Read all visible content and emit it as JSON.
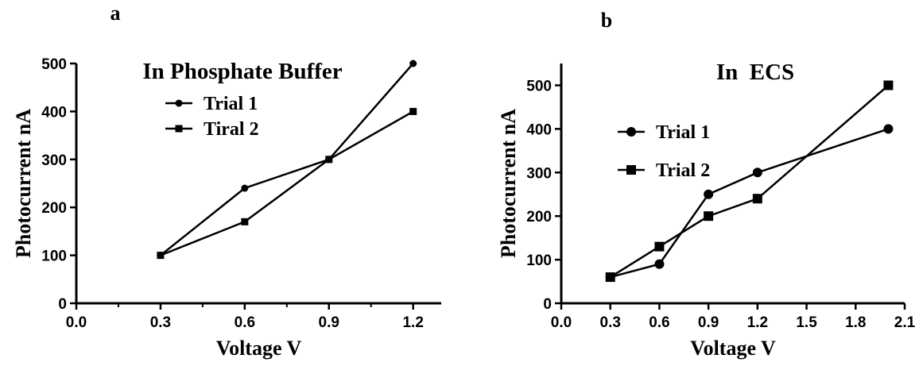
{
  "chart_data": [
    {
      "type": "line",
      "panel_label": "a",
      "title": "In Phosphate Buffer",
      "xlabel": "Voltage V",
      "ylabel": "Photocurrent nA",
      "xlim": [
        0.0,
        1.3
      ],
      "ylim": [
        0,
        500
      ],
      "xticks": [
        "0.0",
        "0.3",
        "0.6",
        "0.9",
        "1.2"
      ],
      "yticks": [
        "0",
        "100",
        "200",
        "300",
        "400",
        "500"
      ],
      "legend_position": "top",
      "series": [
        {
          "name": "Trial 1",
          "marker": "circle",
          "x": [
            0.3,
            0.6,
            0.9,
            1.2
          ],
          "y": [
            100,
            240,
            300,
            500
          ]
        },
        {
          "name": "Tiral 2",
          "marker": "square",
          "x": [
            0.3,
            0.6,
            0.9,
            1.2
          ],
          "y": [
            100,
            170,
            300,
            400
          ]
        }
      ]
    },
    {
      "type": "line",
      "panel_label": "b",
      "title": "In  ECS",
      "xlabel": "Voltage V",
      "ylabel": "Photocurrent nA",
      "xlim": [
        0.0,
        2.1
      ],
      "ylim": [
        0,
        550
      ],
      "xticks": [
        "0.0",
        "0.3",
        "0.6",
        "0.9",
        "1.2",
        "1.5",
        "1.8",
        "2.1"
      ],
      "yticks": [
        "0",
        "100",
        "200",
        "300",
        "400",
        "500"
      ],
      "legend_position": "top-left",
      "series": [
        {
          "name": "Trial 1",
          "marker": "circle",
          "x": [
            0.3,
            0.6,
            0.9,
            1.2,
            2.0
          ],
          "y": [
            60,
            90,
            250,
            300,
            400
          ]
        },
        {
          "name": "Trial 2",
          "marker": "square",
          "x": [
            0.3,
            0.6,
            0.9,
            1.2,
            2.0
          ],
          "y": [
            60,
            130,
            200,
            240,
            500
          ]
        }
      ]
    }
  ]
}
